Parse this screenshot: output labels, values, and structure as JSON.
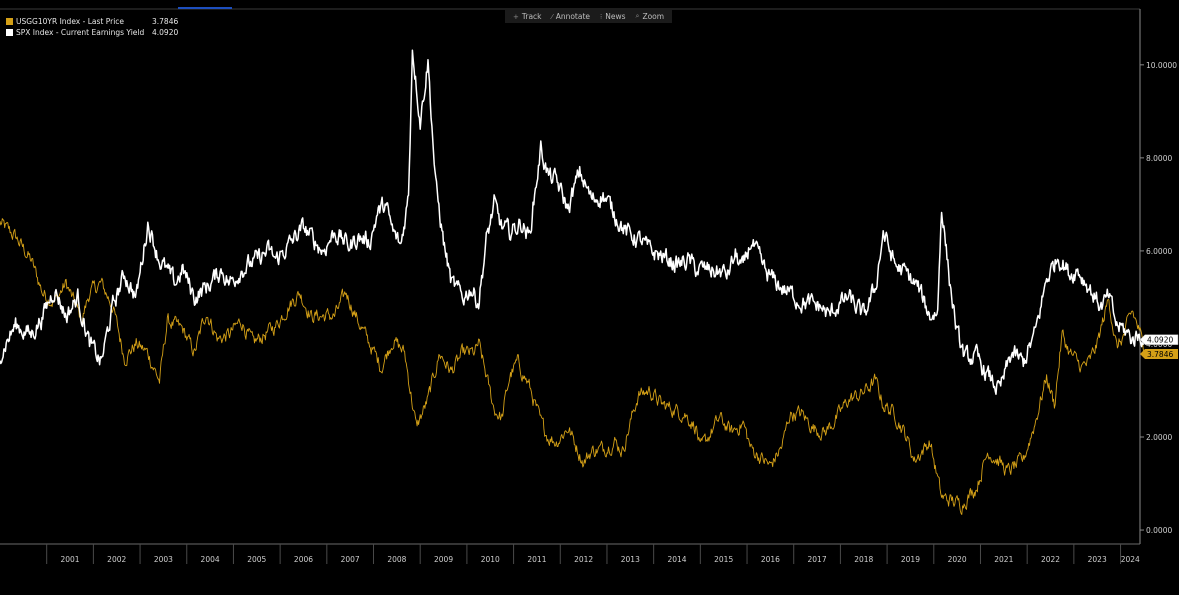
{
  "toolbar": {
    "items": [
      {
        "label": "Track",
        "icon": "crosshair-icon",
        "glyph": "+"
      },
      {
        "label": "Annotate",
        "icon": "pencil-icon",
        "glyph": "⁄"
      },
      {
        "label": "News",
        "icon": "news-icon",
        "glyph": "⁝"
      },
      {
        "label": "Zoom",
        "icon": "zoom-icon",
        "glyph": "⌕"
      }
    ]
  },
  "legend": {
    "items": [
      {
        "name": "USGG10YR Index - Last Price",
        "value": "3.7846",
        "color": "#d4a017"
      },
      {
        "name": "SPX Index - Current Earnings Yield",
        "value": "4.0920",
        "color": "#ffffff"
      }
    ]
  },
  "chart_data": {
    "type": "line",
    "x_range": [
      "2000-01",
      "2024-06"
    ],
    "ylim": [
      -0.3,
      11.2
    ],
    "y_ticks": [
      {
        "value": 0,
        "label": "0.0000"
      },
      {
        "value": 2,
        "label": "2.0000"
      },
      {
        "value": 4,
        "label": "4.0000"
      },
      {
        "value": 6,
        "label": "6.0000"
      },
      {
        "value": 8,
        "label": "8.0000"
      },
      {
        "value": 10,
        "label": "10.0000"
      }
    ],
    "x_ticks": [
      "2001",
      "2002",
      "2003",
      "2004",
      "2005",
      "2006",
      "2007",
      "2008",
      "2009",
      "2010",
      "2011",
      "2012",
      "2013",
      "2014",
      "2015",
      "2016",
      "2017",
      "2018",
      "2019",
      "2020",
      "2021",
      "2022",
      "2023",
      "2024"
    ],
    "grid": false,
    "legend_position": "top-left",
    "series": [
      {
        "name": "USGG10YR Index - Last Price",
        "color": "#d4a017",
        "last_label": "3.7846",
        "points": [
          [
            "2000-01",
            6.6
          ],
          [
            "2000-05",
            6.3
          ],
          [
            "2000-09",
            5.8
          ],
          [
            "2000-12",
            5.1
          ],
          [
            "2001-03",
            4.9
          ],
          [
            "2001-06",
            5.3
          ],
          [
            "2001-10",
            4.5
          ],
          [
            "2001-12",
            5.1
          ],
          [
            "2002-03",
            5.3
          ],
          [
            "2002-06",
            4.8
          ],
          [
            "2002-09",
            3.7
          ],
          [
            "2002-12",
            4.0
          ],
          [
            "2003-03",
            3.8
          ],
          [
            "2003-06",
            3.2
          ],
          [
            "2003-08",
            4.5
          ],
          [
            "2003-12",
            4.3
          ],
          [
            "2004-03",
            3.8
          ],
          [
            "2004-06",
            4.7
          ],
          [
            "2004-09",
            4.1
          ],
          [
            "2004-12",
            4.2
          ],
          [
            "2005-03",
            4.5
          ],
          [
            "2005-06",
            4.0
          ],
          [
            "2005-09",
            4.2
          ],
          [
            "2005-12",
            4.4
          ],
          [
            "2006-03",
            4.8
          ],
          [
            "2006-06",
            5.1
          ],
          [
            "2006-09",
            4.6
          ],
          [
            "2006-12",
            4.6
          ],
          [
            "2007-03",
            4.6
          ],
          [
            "2007-06",
            5.1
          ],
          [
            "2007-09",
            4.5
          ],
          [
            "2007-12",
            4.0
          ],
          [
            "2008-03",
            3.5
          ],
          [
            "2008-06",
            4.1
          ],
          [
            "2008-09",
            3.8
          ],
          [
            "2008-12",
            2.2
          ],
          [
            "2009-03",
            2.8
          ],
          [
            "2009-06",
            3.8
          ],
          [
            "2009-09",
            3.4
          ],
          [
            "2009-12",
            3.8
          ],
          [
            "2010-03",
            3.8
          ],
          [
            "2010-04",
            4.0
          ],
          [
            "2010-08",
            2.6
          ],
          [
            "2010-10",
            2.4
          ],
          [
            "2010-12",
            3.3
          ],
          [
            "2011-02",
            3.6
          ],
          [
            "2011-05",
            3.1
          ],
          [
            "2011-08",
            2.3
          ],
          [
            "2011-10",
            2.0
          ],
          [
            "2011-12",
            1.9
          ],
          [
            "2012-03",
            2.2
          ],
          [
            "2012-07",
            1.45
          ],
          [
            "2012-09",
            1.7
          ],
          [
            "2012-12",
            1.75
          ],
          [
            "2013-03",
            1.9
          ],
          [
            "2013-05",
            1.7
          ],
          [
            "2013-09",
            2.9
          ],
          [
            "2013-12",
            3.0
          ],
          [
            "2014-03",
            2.7
          ],
          [
            "2014-06",
            2.6
          ],
          [
            "2014-09",
            2.5
          ],
          [
            "2014-12",
            2.2
          ],
          [
            "2015-01",
            1.7
          ],
          [
            "2015-03",
            2.0
          ],
          [
            "2015-06",
            2.4
          ],
          [
            "2015-09",
            2.1
          ],
          [
            "2015-12",
            2.3
          ],
          [
            "2016-02",
            1.75
          ],
          [
            "2016-07",
            1.37
          ],
          [
            "2016-10",
            1.8
          ],
          [
            "2016-12",
            2.5
          ],
          [
            "2017-03",
            2.5
          ],
          [
            "2017-06",
            2.2
          ],
          [
            "2017-09",
            2.1
          ],
          [
            "2017-12",
            2.4
          ],
          [
            "2018-03",
            2.8
          ],
          [
            "2018-06",
            2.9
          ],
          [
            "2018-10",
            3.2
          ],
          [
            "2018-12",
            2.7
          ],
          [
            "2019-03",
            2.5
          ],
          [
            "2019-06",
            2.0
          ],
          [
            "2019-08",
            1.5
          ],
          [
            "2019-12",
            1.9
          ],
          [
            "2020-03",
            0.7
          ],
          [
            "2020-05",
            0.65
          ],
          [
            "2020-08",
            0.55
          ],
          [
            "2020-12",
            0.93
          ],
          [
            "2021-03",
            1.7
          ],
          [
            "2021-06",
            1.45
          ],
          [
            "2021-08",
            1.25
          ],
          [
            "2021-12",
            1.5
          ],
          [
            "2022-03",
            2.3
          ],
          [
            "2022-06",
            3.3
          ],
          [
            "2022-08",
            2.7
          ],
          [
            "2022-10",
            4.2
          ],
          [
            "2022-12",
            3.8
          ],
          [
            "2023-03",
            3.5
          ],
          [
            "2023-05",
            3.6
          ],
          [
            "2023-07",
            4.0
          ],
          [
            "2023-10",
            4.98
          ],
          [
            "2023-12",
            3.9
          ],
          [
            "2024-02",
            4.2
          ],
          [
            "2024-04",
            4.7
          ],
          [
            "2024-06",
            4.25
          ],
          [
            "2024-07",
            3.7846
          ]
        ]
      },
      {
        "name": "SPX Index - Current Earnings Yield",
        "color": "#ffffff",
        "last_label": "4.0920",
        "points": [
          [
            "2000-01",
            3.8
          ],
          [
            "2000-05",
            4.4
          ],
          [
            "2000-09",
            4.2
          ],
          [
            "2000-12",
            4.6
          ],
          [
            "2001-03",
            5.2
          ],
          [
            "2001-06",
            4.6
          ],
          [
            "2001-09",
            5.0
          ],
          [
            "2001-12",
            4.0
          ],
          [
            "2002-03",
            3.6
          ],
          [
            "2002-06",
            4.8
          ],
          [
            "2002-09",
            5.5
          ],
          [
            "2002-12",
            5.0
          ],
          [
            "2003-03",
            6.6
          ],
          [
            "2003-06",
            5.8
          ],
          [
            "2003-10",
            5.3
          ],
          [
            "2003-12",
            5.6
          ],
          [
            "2004-03",
            5.0
          ],
          [
            "2004-07",
            5.3
          ],
          [
            "2004-10",
            5.6
          ],
          [
            "2004-12",
            5.3
          ],
          [
            "2005-03",
            5.6
          ],
          [
            "2005-07",
            5.8
          ],
          [
            "2005-10",
            6.0
          ],
          [
            "2005-12",
            5.8
          ],
          [
            "2006-03",
            6.1
          ],
          [
            "2006-07",
            6.5
          ],
          [
            "2006-10",
            6.2
          ],
          [
            "2006-12",
            6.0
          ],
          [
            "2007-03",
            6.4
          ],
          [
            "2007-07",
            6.1
          ],
          [
            "2007-09",
            6.3
          ],
          [
            "2007-12",
            6.2
          ],
          [
            "2008-02",
            6.8
          ],
          [
            "2008-04",
            7.0
          ],
          [
            "2008-06",
            6.4
          ],
          [
            "2008-08",
            6.1
          ],
          [
            "2008-10",
            7.2
          ],
          [
            "2008-11",
            10.4
          ],
          [
            "2009-01",
            8.8
          ],
          [
            "2009-03",
            10.1
          ],
          [
            "2009-05",
            7.4
          ],
          [
            "2009-07",
            6.2
          ],
          [
            "2009-09",
            5.3
          ],
          [
            "2009-12",
            5.0
          ],
          [
            "2010-02",
            5.2
          ],
          [
            "2010-04",
            4.9
          ],
          [
            "2010-06",
            6.2
          ],
          [
            "2010-08",
            7.0
          ],
          [
            "2010-10",
            6.5
          ],
          [
            "2010-12",
            6.4
          ],
          [
            "2011-03",
            6.6
          ],
          [
            "2011-05",
            6.3
          ],
          [
            "2011-08",
            8.2
          ],
          [
            "2011-10",
            7.6
          ],
          [
            "2011-12",
            7.5
          ],
          [
            "2012-03",
            6.9
          ],
          [
            "2012-06",
            7.7
          ],
          [
            "2012-09",
            7.1
          ],
          [
            "2012-12",
            7.2
          ],
          [
            "2013-03",
            6.8
          ],
          [
            "2013-06",
            6.4
          ],
          [
            "2013-10",
            6.2
          ],
          [
            "2013-12",
            6.0
          ],
          [
            "2014-03",
            5.9
          ],
          [
            "2014-07",
            5.7
          ],
          [
            "2014-10",
            5.8
          ],
          [
            "2014-12",
            5.6
          ],
          [
            "2015-03",
            5.6
          ],
          [
            "2015-08",
            5.5
          ],
          [
            "2015-10",
            5.9
          ],
          [
            "2015-12",
            5.6
          ],
          [
            "2016-02",
            6.2
          ],
          [
            "2016-06",
            5.5
          ],
          [
            "2016-10",
            5.2
          ],
          [
            "2016-12",
            5.1
          ],
          [
            "2017-03",
            4.9
          ],
          [
            "2017-08",
            4.8
          ],
          [
            "2017-10",
            4.6
          ],
          [
            "2017-12",
            4.8
          ],
          [
            "2018-03",
            5.0
          ],
          [
            "2018-07",
            4.6
          ],
          [
            "2018-10",
            5.2
          ],
          [
            "2018-12",
            6.4
          ],
          [
            "2019-03",
            5.7
          ],
          [
            "2019-06",
            5.5
          ],
          [
            "2019-09",
            5.2
          ],
          [
            "2019-12",
            4.6
          ],
          [
            "2020-02",
            4.7
          ],
          [
            "2020-03",
            7.0
          ],
          [
            "2020-05",
            5.4
          ],
          [
            "2020-07",
            4.2
          ],
          [
            "2020-09",
            3.7
          ],
          [
            "2020-12",
            3.7
          ],
          [
            "2021-03",
            3.3
          ],
          [
            "2021-06",
            3.0
          ],
          [
            "2021-09",
            3.8
          ],
          [
            "2021-12",
            3.6
          ],
          [
            "2022-03",
            4.2
          ],
          [
            "2022-06",
            5.4
          ],
          [
            "2022-09",
            5.9
          ],
          [
            "2022-12",
            5.5
          ],
          [
            "2023-02",
            5.6
          ],
          [
            "2023-05",
            5.2
          ],
          [
            "2023-08",
            4.8
          ],
          [
            "2023-10",
            5.0
          ],
          [
            "2023-12",
            4.4
          ],
          [
            "2024-02",
            4.3
          ],
          [
            "2024-04",
            4.1
          ],
          [
            "2024-06",
            4.2
          ],
          [
            "2024-07",
            4.092
          ]
        ]
      }
    ]
  }
}
